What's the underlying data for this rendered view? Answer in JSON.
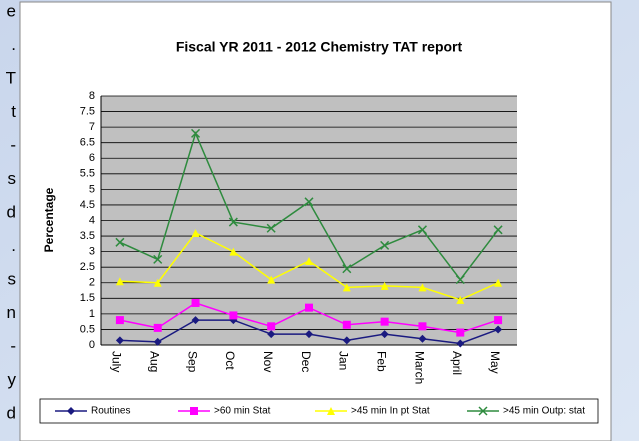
{
  "side_text": [
    "e",
    ".",
    "T",
    "t",
    "-",
    "s",
    "d",
    ".",
    "s",
    "n",
    "-",
    "y",
    "d"
  ],
  "chart_data": {
    "type": "line",
    "title": "Fiscal YR 2011 - 2012 Chemistry TAT report",
    "y_label": "Percentage",
    "categories": [
      "July",
      "Aug",
      "Sep",
      "Oct",
      "Nov",
      "Dec",
      "Jan",
      "Feb",
      "March",
      "April",
      "May"
    ],
    "series": [
      {
        "name": "Routines",
        "color": "#1a1a80",
        "marker": "diamond",
        "values": [
          0.15,
          0.1,
          0.8,
          0.8,
          0.35,
          0.35,
          0.15,
          0.35,
          0.2,
          0.05,
          0.5
        ]
      },
      {
        "name": ">60 min Stat",
        "color": "#ff00ff",
        "marker": "square",
        "values": [
          0.8,
          0.55,
          1.35,
          0.95,
          0.6,
          1.2,
          0.65,
          0.75,
          0.6,
          0.4,
          0.8
        ]
      },
      {
        "name": ">45 min In pt Stat",
        "color": "#ffff00",
        "marker": "triangle",
        "values": [
          2.05,
          2.0,
          3.6,
          3.0,
          2.1,
          2.7,
          1.85,
          1.9,
          1.85,
          1.45,
          2.0
        ]
      },
      {
        "name": ">45 min Outp: stat",
        "color": "#2e8b3e",
        "marker": "x",
        "values": [
          3.3,
          2.75,
          6.8,
          3.95,
          3.75,
          4.6,
          2.45,
          3.2,
          3.7,
          2.1,
          3.7
        ]
      }
    ],
    "ylim": [
      0,
      8
    ],
    "yticks": [
      0,
      0.5,
      1,
      1.5,
      2,
      2.5,
      3,
      3.5,
      4,
      4.5,
      5,
      5.5,
      6,
      6.5,
      7,
      7.5,
      8
    ],
    "grid": true,
    "legend": "bottom",
    "plot_background": "#c0c0c0"
  }
}
